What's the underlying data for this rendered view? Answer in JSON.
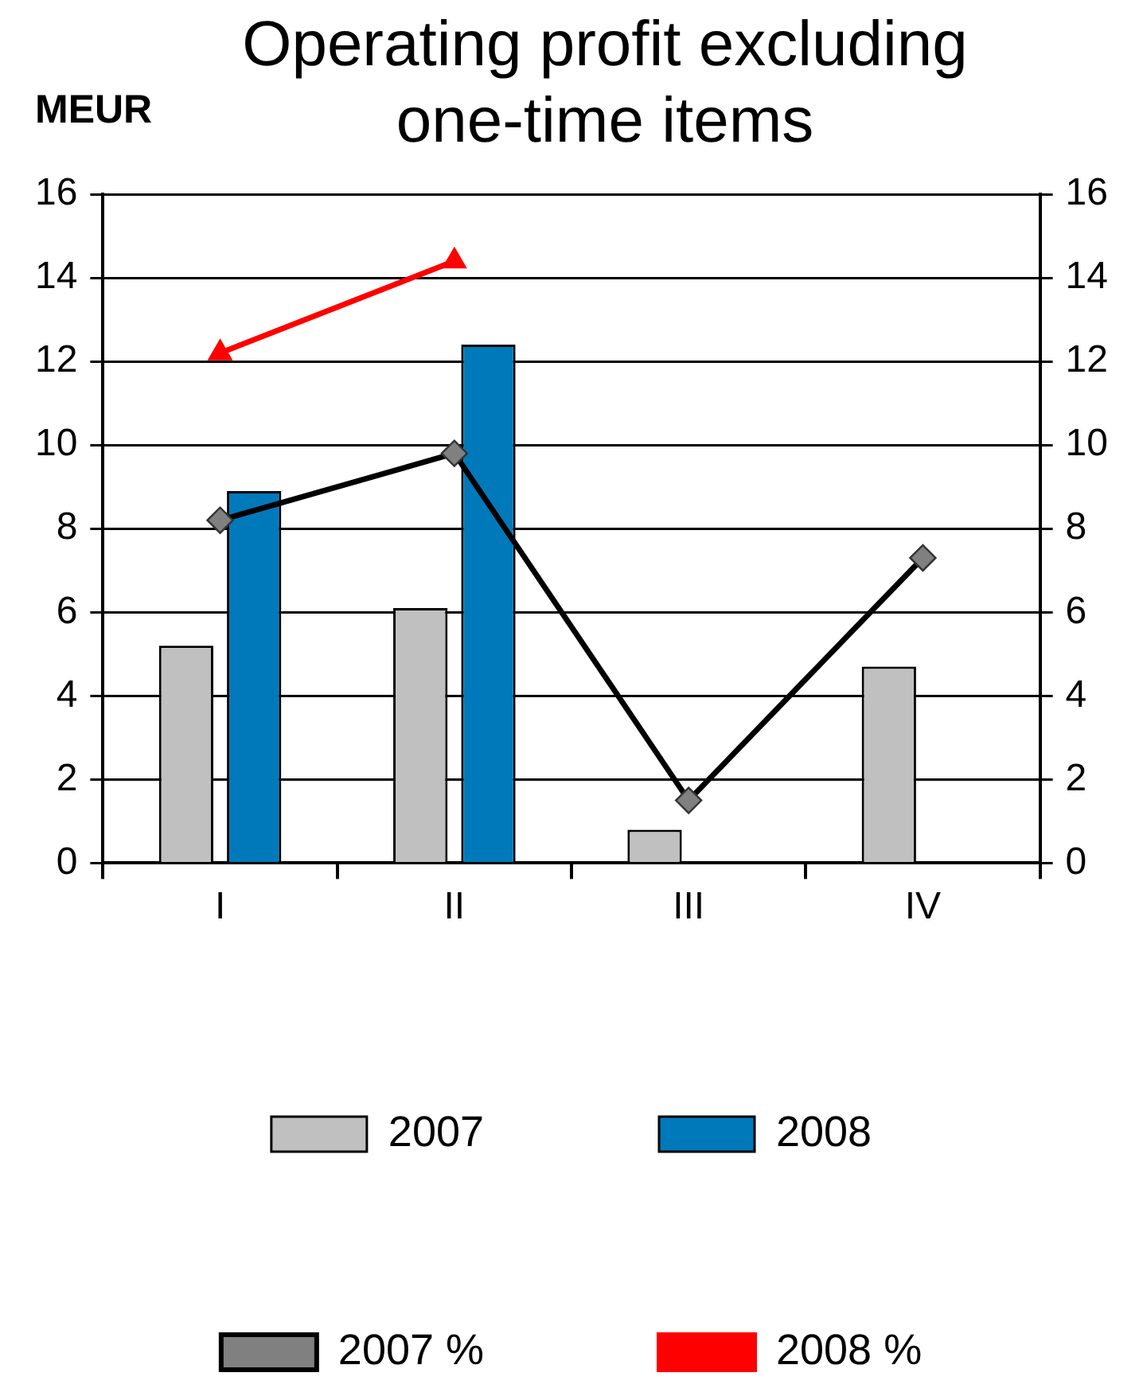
{
  "chart_data": {
    "type": "bar",
    "title": "Operating profit excluding one-time items",
    "ylabel": "MEUR",
    "categories": [
      "I",
      "II",
      "III",
      "IV"
    ],
    "series": [
      {
        "name": "2007",
        "color": "#c0c0c0",
        "values": [
          5.2,
          6.1,
          0.8,
          4.7
        ]
      },
      {
        "name": "2008",
        "color": "#0079bb",
        "values": [
          8.9,
          12.4,
          null,
          null
        ]
      },
      {
        "name": "2007 %",
        "type": "line",
        "axis": "y2",
        "color": "#000000",
        "marker": "diamond",
        "line_style": "solid",
        "values": [
          8.2,
          9.8,
          1.5,
          7.3
        ]
      },
      {
        "name": "2008 %",
        "type": "line",
        "axis": "y2",
        "color": "#ff0000",
        "marker": "triangle",
        "line_style": "solid",
        "values": [
          12.2,
          14.4,
          null,
          null
        ]
      }
    ],
    "ylim": [
      0,
      16
    ],
    "yticks": [
      0,
      2,
      4,
      6,
      8,
      10,
      12,
      14,
      16
    ],
    "y2lim": [
      0,
      16
    ],
    "y2ticks": [
      0,
      2,
      4,
      6,
      8,
      10,
      12,
      14,
      16
    ],
    "grid": "y",
    "legend": "bottom"
  }
}
